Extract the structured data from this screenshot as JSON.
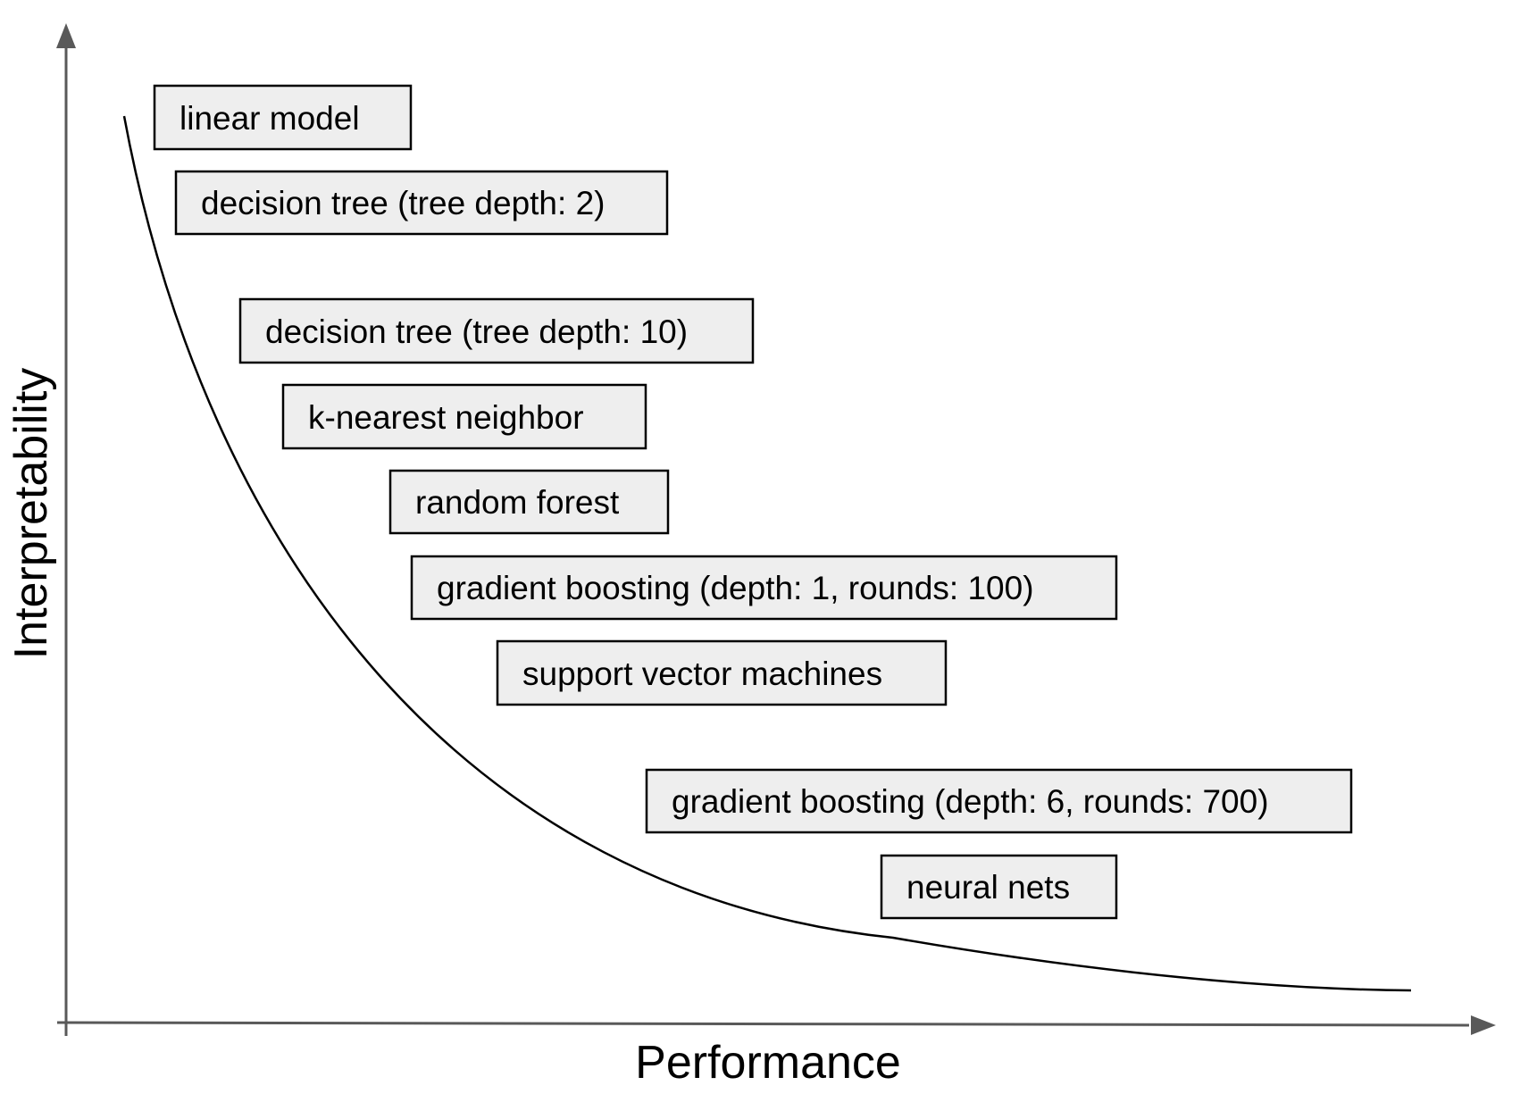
{
  "axes": {
    "x_label": "Performance",
    "y_label": "Interpretability",
    "axis_color": "#595959"
  },
  "curve_color": "#000000",
  "box_fill": "#eeeeee",
  "models": [
    {
      "label": "linear model"
    },
    {
      "label": "decision tree (tree depth: 2)"
    },
    {
      "label": "decision tree (tree depth: 10)"
    },
    {
      "label": "k-nearest neighbor"
    },
    {
      "label": "random forest"
    },
    {
      "label": "gradient boosting (depth: 1, rounds: 100)"
    },
    {
      "label": "support vector machines"
    },
    {
      "label": "gradient boosting (depth: 6, rounds: 700)"
    },
    {
      "label": "neural nets"
    }
  ]
}
